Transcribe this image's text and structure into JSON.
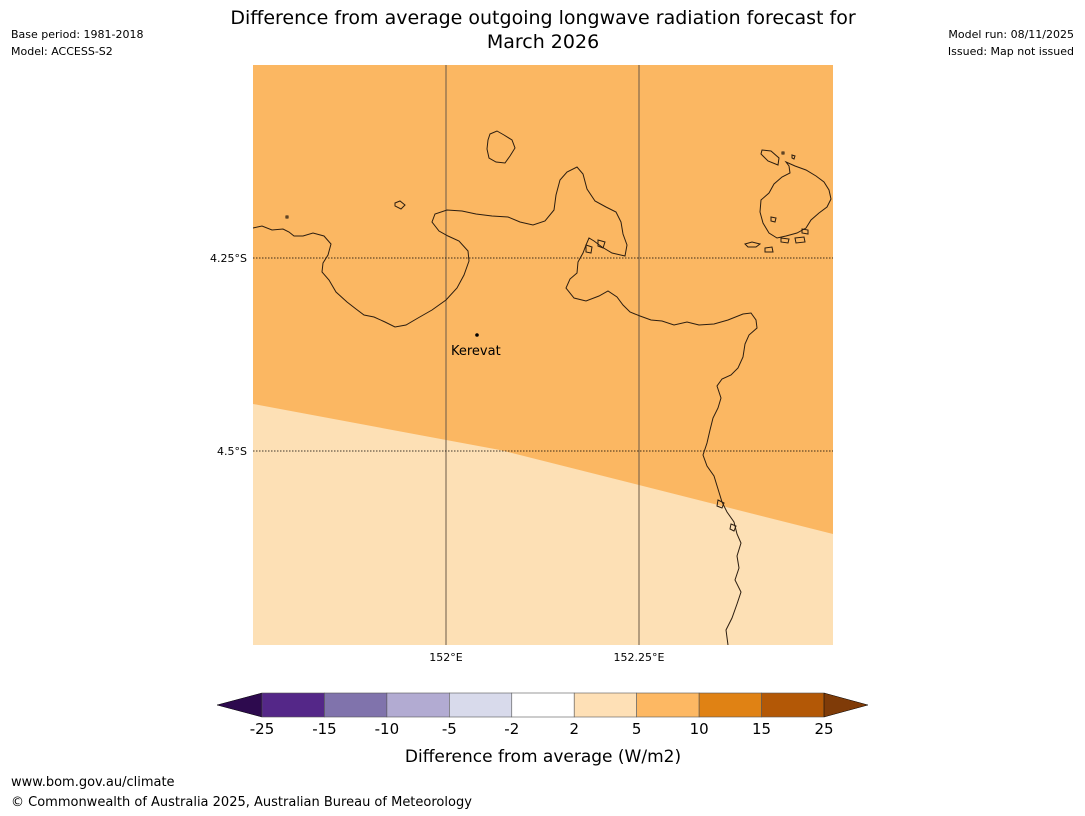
{
  "header": {
    "title_line1": "Difference from average outgoing longwave radiation forecast for",
    "title_line2": "March 2026",
    "base_period": "Base period: 1981-2018",
    "model": "Model: ACCESS-S2",
    "model_run": "Model run: 08/11/2025",
    "issued": "Issued: Map not issued"
  },
  "map": {
    "lat_labels": [
      "4.25°S",
      "4.5°S"
    ],
    "lon_labels": [
      "152°E",
      "152.25°E"
    ],
    "place": "Kerevat",
    "fill_colors": {
      "band_5_10": "#fbb762",
      "band_2_5": "#fde0b5"
    },
    "coastline_color": "#2b1d10"
  },
  "legend": {
    "title": "Difference from average (W/m2)",
    "ticks": [
      "-25",
      "-15",
      "-10",
      "-5",
      "-2",
      "2",
      "5",
      "10",
      "15",
      "25"
    ],
    "colors": [
      "#2d0a4e",
      "#542788",
      "#8073ac",
      "#b2abd2",
      "#d8daeb",
      "#ffffff",
      "#fee0b6",
      "#fdb863",
      "#e08214",
      "#b35806",
      "#7f3b08"
    ]
  },
  "footer": {
    "url": "www.bom.gov.au/climate",
    "copyright": "© Commonwealth of Australia 2025, Australian Bureau of Meteorology"
  }
}
